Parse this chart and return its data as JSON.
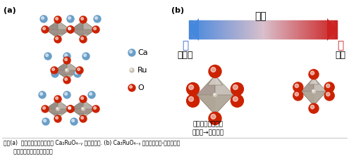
{
  "bg_color": "#ffffff",
  "label_a": "(a)",
  "label_b": "(b)",
  "temp_label": "温度",
  "arrow_left_label": "低",
  "arrow_right_label": "高",
  "arrow_left_sub": "絶縁体",
  "arrow_right_sub": "金属",
  "legend_ca": "Ca",
  "legend_ru": "Ru",
  "legend_o": "O",
  "crystal_label": "結晶粒の異方的な\n熱膨張→負熱膨張",
  "caption": "図１(a)  層状ルテニウム酸化物 Ca₂RuO₄₋ᵧ の結晶構造. (b) Ca₂RuO₄₋ᵧ における金属-絶縁体転移\n      と結晶粒の異方的な熱膨張",
  "color_ca": "#6a9fc8",
  "color_ru": "#c8bdb0",
  "color_o": "#cc2200",
  "arrow_blue": "#4488dd",
  "arrow_red": "#cc2222",
  "left_label_color": "#3366cc",
  "right_label_color": "#cc2222"
}
